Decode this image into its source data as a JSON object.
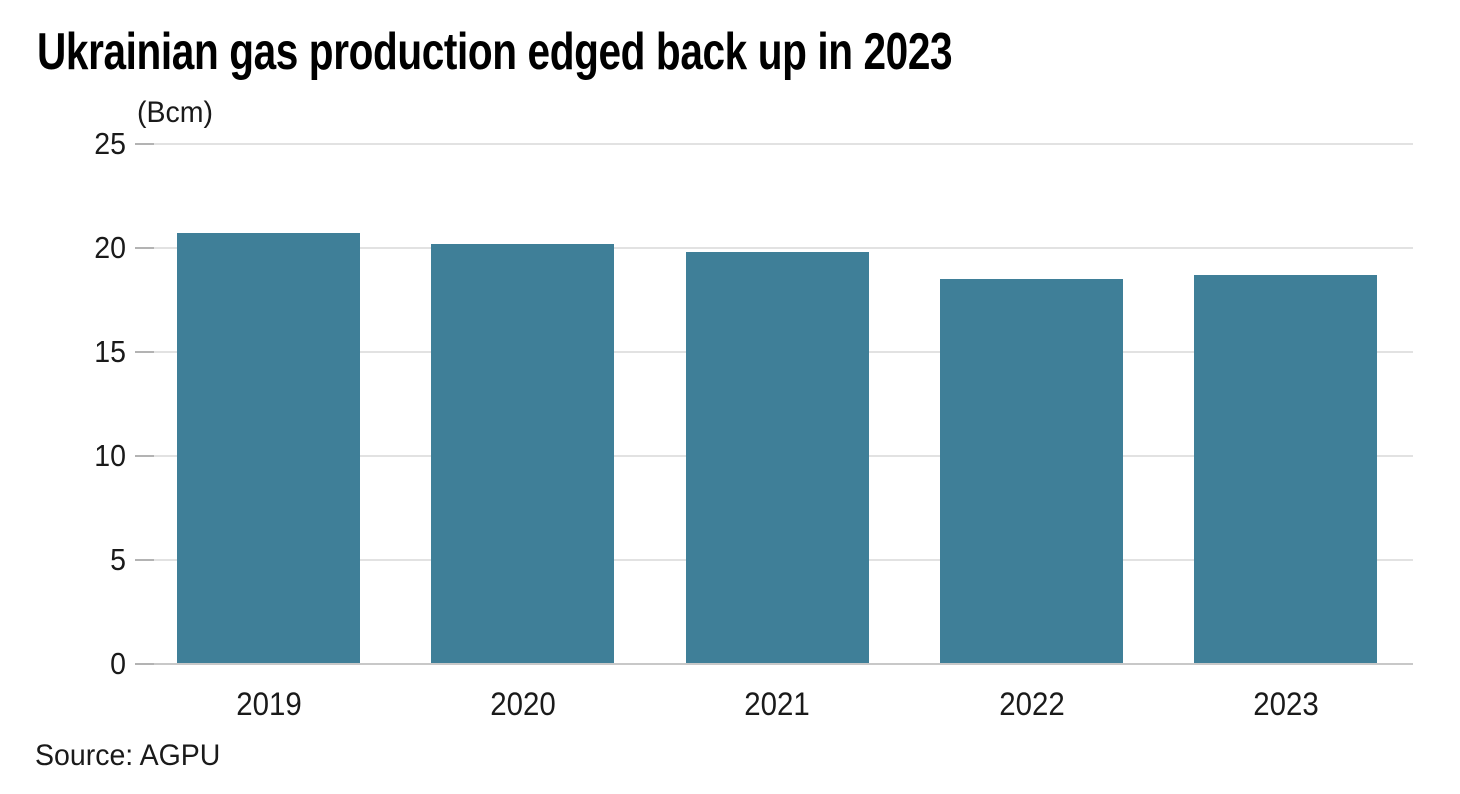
{
  "title": "Ukrainian gas production edged back up in 2023",
  "unit_label": "(Bcm)",
  "source": "Source: AGPU",
  "chart_data": {
    "type": "bar",
    "title": "Ukrainian gas production edged back up in 2023",
    "categories": [
      "2019",
      "2020",
      "2021",
      "2022",
      "2023"
    ],
    "values": [
      20.7,
      20.2,
      19.8,
      18.5,
      18.7
    ],
    "xlabel": "",
    "ylabel": "(Bcm)",
    "ylim": [
      0,
      25
    ],
    "yticks": [
      0,
      5,
      10,
      15,
      20,
      25
    ],
    "grid": true,
    "legend": false,
    "source": "Source: AGPU",
    "colors": {
      "bar": "#3f7f98",
      "gridline": "#e2e2e2",
      "axis_line": "#c8c8c8",
      "tick": "#b3b3b3",
      "text": "#1a1a1a",
      "title_text": "#000000",
      "background": "#ffffff"
    }
  }
}
